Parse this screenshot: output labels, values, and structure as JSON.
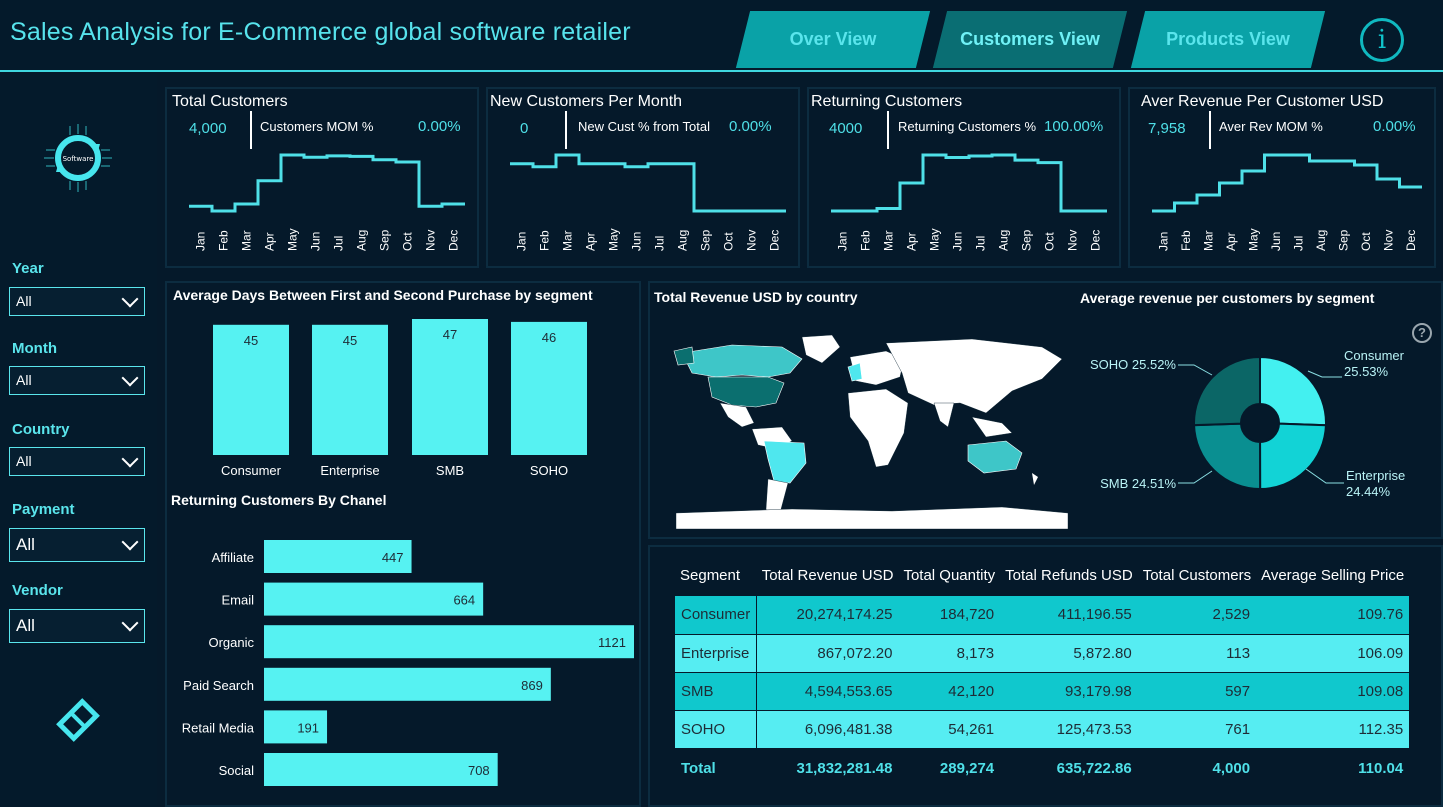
{
  "header": {
    "title": "Sales Analysis for E-Commerce global software retailer",
    "tabs": [
      {
        "label": "Over View"
      },
      {
        "label": "Customers View"
      },
      {
        "label": "Products View"
      }
    ],
    "info_glyph": "i"
  },
  "sidebar": {
    "logo_text": "Software",
    "slicers": [
      {
        "label": "Year",
        "value": "All"
      },
      {
        "label": "Month",
        "value": "All"
      },
      {
        "label": "Country",
        "value": "All"
      },
      {
        "label": "Payment",
        "value": "All"
      },
      {
        "label": "Vendor",
        "value": "All"
      }
    ]
  },
  "months": [
    "Jan",
    "Feb",
    "Mar",
    "Apr",
    "May",
    "Jun",
    "Jul",
    "Aug",
    "Sep",
    "Oct",
    "Nov",
    "Dec"
  ],
  "kpis": [
    {
      "title": "Total Customers",
      "value": "4,000",
      "sub_label": "Customers MOM %",
      "sub_value": "0.00%"
    },
    {
      "title": "New Customers Per Month",
      "value": "0",
      "sub_label": "New Cust % from Total",
      "sub_value": "0.00%"
    },
    {
      "title": "Returning Customers",
      "value": "4000",
      "sub_label": "Returning Customers %",
      "sub_value": "100.00%"
    },
    {
      "title": "Aver Revenue Per Customer USD",
      "value": "7,958",
      "sub_label": "Aver Rev MOM %",
      "sub_value": "0.00%"
    }
  ],
  "colors": {
    "accent": "#4fe0e8",
    "bar": "#56f2f2",
    "bg": "#05192a",
    "teal_dark": "#0a6e73"
  },
  "chart_data": [
    {
      "type": "line",
      "title": "Total Customers",
      "x": [
        "Jan",
        "Feb",
        "Mar",
        "Apr",
        "May",
        "Jun",
        "Jul",
        "Aug",
        "Sep",
        "Oct",
        "Nov",
        "Dec"
      ],
      "values": [
        300,
        290,
        305,
        355,
        410,
        405,
        408,
        407,
        400,
        395,
        300,
        305
      ],
      "step": true
    },
    {
      "type": "line",
      "title": "New Customers Per Month",
      "x": [
        "Jan",
        "Feb",
        "Mar",
        "Apr",
        "May",
        "Jun",
        "Jul",
        "Aug",
        "Sep",
        "Oct",
        "Nov",
        "Dec"
      ],
      "values": [
        330,
        325,
        345,
        330,
        330,
        325,
        330,
        330,
        250,
        250,
        250,
        250
      ],
      "step": true
    },
    {
      "type": "line",
      "title": "Returning Customers",
      "x": [
        "Jan",
        "Feb",
        "Mar",
        "Apr",
        "May",
        "Jun",
        "Jul",
        "Aug",
        "Sep",
        "Oct",
        "Nov",
        "Dec"
      ],
      "values": [
        300,
        300,
        305,
        355,
        410,
        405,
        408,
        410,
        400,
        395,
        300,
        300
      ],
      "step": true
    },
    {
      "type": "line",
      "title": "Aver Revenue Per Customer USD",
      "x": [
        "Jan",
        "Feb",
        "Mar",
        "Apr",
        "May",
        "Jun",
        "Jul",
        "Aug",
        "Sep",
        "Oct",
        "Nov",
        "Dec"
      ],
      "values": [
        7850,
        7870,
        7890,
        7920,
        7950,
        7990,
        7990,
        7975,
        7975,
        7965,
        7930,
        7910
      ],
      "step": true
    },
    {
      "type": "bar",
      "title": "Average Days Between First and Second Purchase by segment",
      "categories": [
        "Consumer",
        "Enterprise",
        "SMB",
        "SOHO"
      ],
      "values": [
        45,
        45,
        47,
        46
      ]
    },
    {
      "type": "bar",
      "orientation": "horizontal",
      "title": "Returning Customers By Chanel",
      "categories": [
        "Affiliate",
        "Email",
        "Organic",
        "Paid Search",
        "Retail Media",
        "Social"
      ],
      "values": [
        447,
        664,
        1121,
        869,
        191,
        708
      ]
    },
    {
      "type": "pie",
      "title": "Average revenue per customers by segment",
      "donut": true,
      "slices": [
        {
          "label": "Consumer",
          "value": 25.53,
          "display": "25.53%",
          "color": "#43f0f0"
        },
        {
          "label": "Enterprise",
          "value": 24.44,
          "display": "24.44%",
          "color": "#12d3d6"
        },
        {
          "label": "SMB",
          "value": 24.51,
          "display": "24.51%",
          "color": "#0a8f91"
        },
        {
          "label": "SOHO",
          "value": 25.52,
          "display": "25.52%",
          "color": "#0b6666"
        }
      ]
    }
  ],
  "map": {
    "title": "Total Revenue USD by country",
    "help_glyph": "?"
  },
  "table": {
    "headers": [
      "Segment",
      "Total Revenue USD",
      "Total Quantity",
      "Total Refunds USD",
      "Total Customers",
      "Average Selling Price"
    ],
    "rows": [
      [
        "Consumer",
        "20,274,174.25",
        "184,720",
        "411,196.55",
        "2,529",
        "109.76"
      ],
      [
        "Enterprise",
        "867,072.20",
        "8,173",
        "5,872.80",
        "113",
        "106.09"
      ],
      [
        "SMB",
        "4,594,553.65",
        "42,120",
        "93,179.98",
        "597",
        "109.08"
      ],
      [
        "SOHO",
        "6,096,481.38",
        "54,261",
        "125,473.53",
        "761",
        "112.35"
      ]
    ],
    "total": [
      "Total",
      "31,832,281.48",
      "289,274",
      "635,722.86",
      "4,000",
      "110.04"
    ]
  }
}
